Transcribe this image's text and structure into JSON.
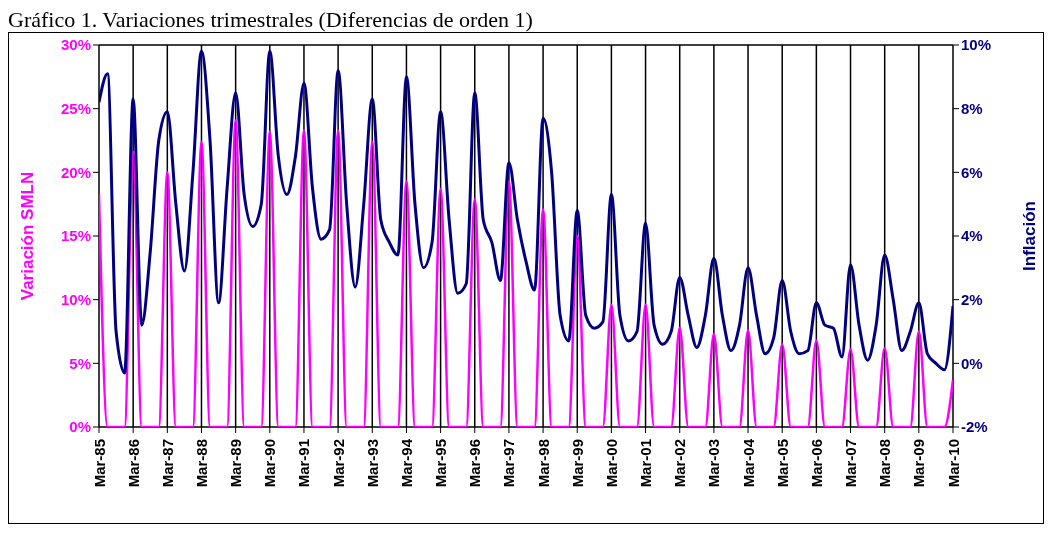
{
  "chart_data": {
    "type": "line",
    "title": "Gráfico 1. Variaciones trimestrales (Diferencias de orden 1)",
    "ylabel": "Variación SMLN",
    "y2label": "Inflación",
    "categories": [
      "Mar-85",
      null,
      null,
      null,
      "Mar-86",
      null,
      null,
      null,
      "Mar-87",
      null,
      null,
      null,
      "Mar-88",
      null,
      null,
      null,
      "Mar-89",
      null,
      null,
      null,
      "Mar-90",
      null,
      null,
      null,
      "Mar-91",
      null,
      null,
      null,
      "Mar-92",
      null,
      null,
      null,
      "Mar-93",
      null,
      null,
      null,
      "Mar-94",
      null,
      null,
      null,
      "Mar-95",
      null,
      null,
      null,
      "Mar-96",
      null,
      null,
      null,
      "Mar-97",
      null,
      null,
      null,
      "Mar-98",
      null,
      null,
      null,
      "Mar-99",
      null,
      null,
      null,
      "Mar-00",
      null,
      null,
      null,
      "Mar-01",
      null,
      null,
      null,
      "Mar-02",
      null,
      null,
      null,
      "Mar-03",
      null,
      null,
      null,
      "Mar-04",
      null,
      null,
      null,
      "Mar-05",
      null,
      null,
      null,
      "Mar-06",
      null,
      null,
      null,
      "Mar-07",
      null,
      null,
      null,
      "Mar-08",
      null,
      null,
      null,
      "Mar-09",
      null,
      null,
      null,
      "Mar-10"
    ],
    "series": [
      {
        "color": "#ff00ff",
        "values": [
          18.3,
          0,
          0,
          0,
          21.6,
          0,
          0,
          0,
          20.0,
          0,
          0,
          0,
          22.4,
          0,
          0,
          0,
          24.1,
          0,
          0,
          0,
          23.2,
          0,
          0,
          0,
          23.3,
          0,
          0,
          0,
          23.3,
          0,
          0,
          0,
          22.4,
          0,
          0,
          0,
          19.3,
          0,
          0,
          0,
          18.7,
          0,
          0,
          0,
          17.9,
          0,
          0,
          0,
          19.3,
          0,
          0,
          0,
          17.1,
          0,
          0,
          0,
          15.0,
          0,
          0,
          0,
          9.6,
          0,
          0,
          0,
          9.6,
          0,
          0,
          0,
          7.8,
          0,
          0,
          0,
          7.3,
          0,
          0,
          0,
          7.6,
          0,
          0,
          0,
          6.5,
          0,
          0,
          0,
          6.8,
          0,
          0,
          0,
          6.1,
          0,
          0,
          0,
          6.2,
          0,
          0,
          0,
          7.5,
          0,
          0,
          0,
          3.7
        ]
      },
      {
        "color": "#000080",
        "axis": "y2",
        "values": [
          8.2,
          9.1,
          1.0,
          -0.3,
          8.3,
          1.2,
          3.5,
          7.0,
          7.9,
          5.0,
          2.9,
          6.0,
          9.8,
          7.0,
          1.9,
          5.5,
          8.5,
          5.3,
          4.3,
          5.0,
          9.8,
          6.5,
          5.3,
          6.5,
          8.8,
          5.5,
          3.9,
          4.2,
          9.2,
          5.0,
          2.4,
          5.0,
          8.3,
          4.5,
          3.8,
          3.4,
          9.0,
          5.0,
          3.0,
          3.8,
          7.9,
          4.5,
          2.2,
          2.5,
          8.5,
          4.5,
          3.8,
          2.6,
          6.3,
          4.5,
          3.2,
          2.3,
          7.7,
          6.0,
          1.5,
          0.7,
          4.8,
          1.5,
          1.1,
          1.3,
          5.3,
          1.5,
          0.7,
          1.0,
          4.4,
          1.2,
          0.6,
          1.0,
          2.7,
          1.5,
          0.5,
          1.5,
          3.3,
          1.5,
          0.4,
          1.2,
          3.0,
          1.5,
          0.3,
          0.8,
          2.6,
          1.0,
          0.3,
          0.4,
          1.9,
          1.2,
          1.1,
          0.2,
          3.1,
          1.2,
          0.1,
          1.2,
          3.4,
          2.0,
          0.4,
          1.0,
          1.9,
          0.3,
          0.0,
          -0.2,
          1.8
        ]
      }
    ],
    "ylim": [
      0,
      30
    ],
    "yticks": [
      {
        "value": 0,
        "label": "0%"
      },
      {
        "value": 5,
        "label": "5%"
      },
      {
        "value": 10,
        "label": "10%"
      },
      {
        "value": 15,
        "label": "15%"
      },
      {
        "value": 20,
        "label": "20%"
      },
      {
        "value": 25,
        "label": "25%"
      },
      {
        "value": 30,
        "label": "30%"
      }
    ],
    "y2lim": [
      -2,
      10
    ],
    "y2ticks": [
      {
        "value": -2,
        "label": "-2%"
      },
      {
        "value": 0,
        "label": "0%"
      },
      {
        "value": 2,
        "label": "2%"
      },
      {
        "value": 4,
        "label": "4%"
      },
      {
        "value": 6,
        "label": "6%"
      },
      {
        "value": 8,
        "label": "8%"
      },
      {
        "value": 10,
        "label": "10%"
      }
    ],
    "grid": true,
    "marker": "none",
    "line_style": "solid"
  }
}
